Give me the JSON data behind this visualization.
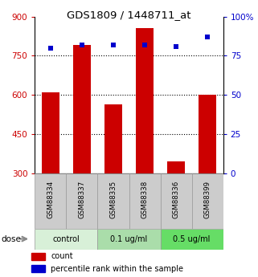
{
  "title": "GDS1809 / 1448711_at",
  "samples": [
    "GSM88334",
    "GSM88337",
    "GSM88335",
    "GSM88338",
    "GSM88336",
    "GSM88399"
  ],
  "counts": [
    610,
    790,
    565,
    855,
    345,
    600
  ],
  "percentiles": [
    80,
    82,
    82,
    82,
    81,
    87
  ],
  "ylim_left": [
    300,
    900
  ],
  "ylim_right": [
    0,
    100
  ],
  "yticks_left": [
    300,
    450,
    600,
    750,
    900
  ],
  "yticks_right": [
    0,
    25,
    50,
    75,
    100
  ],
  "bar_color": "#cc0000",
  "dot_color": "#0000cc",
  "groups": [
    {
      "label": "control",
      "start": 0,
      "end": 2,
      "color": "#d8f0d8"
    },
    {
      "label": "0.1 ug/ml",
      "start": 2,
      "end": 4,
      "color": "#aaddaa"
    },
    {
      "label": "0.5 ug/ml",
      "start": 4,
      "end": 6,
      "color": "#66dd66"
    }
  ],
  "dose_label": "dose",
  "legend_count": "count",
  "legend_percentile": "percentile rank within the sample",
  "grid_yticks": [
    450,
    600,
    750
  ],
  "xlabel_area_color": "#cccccc"
}
